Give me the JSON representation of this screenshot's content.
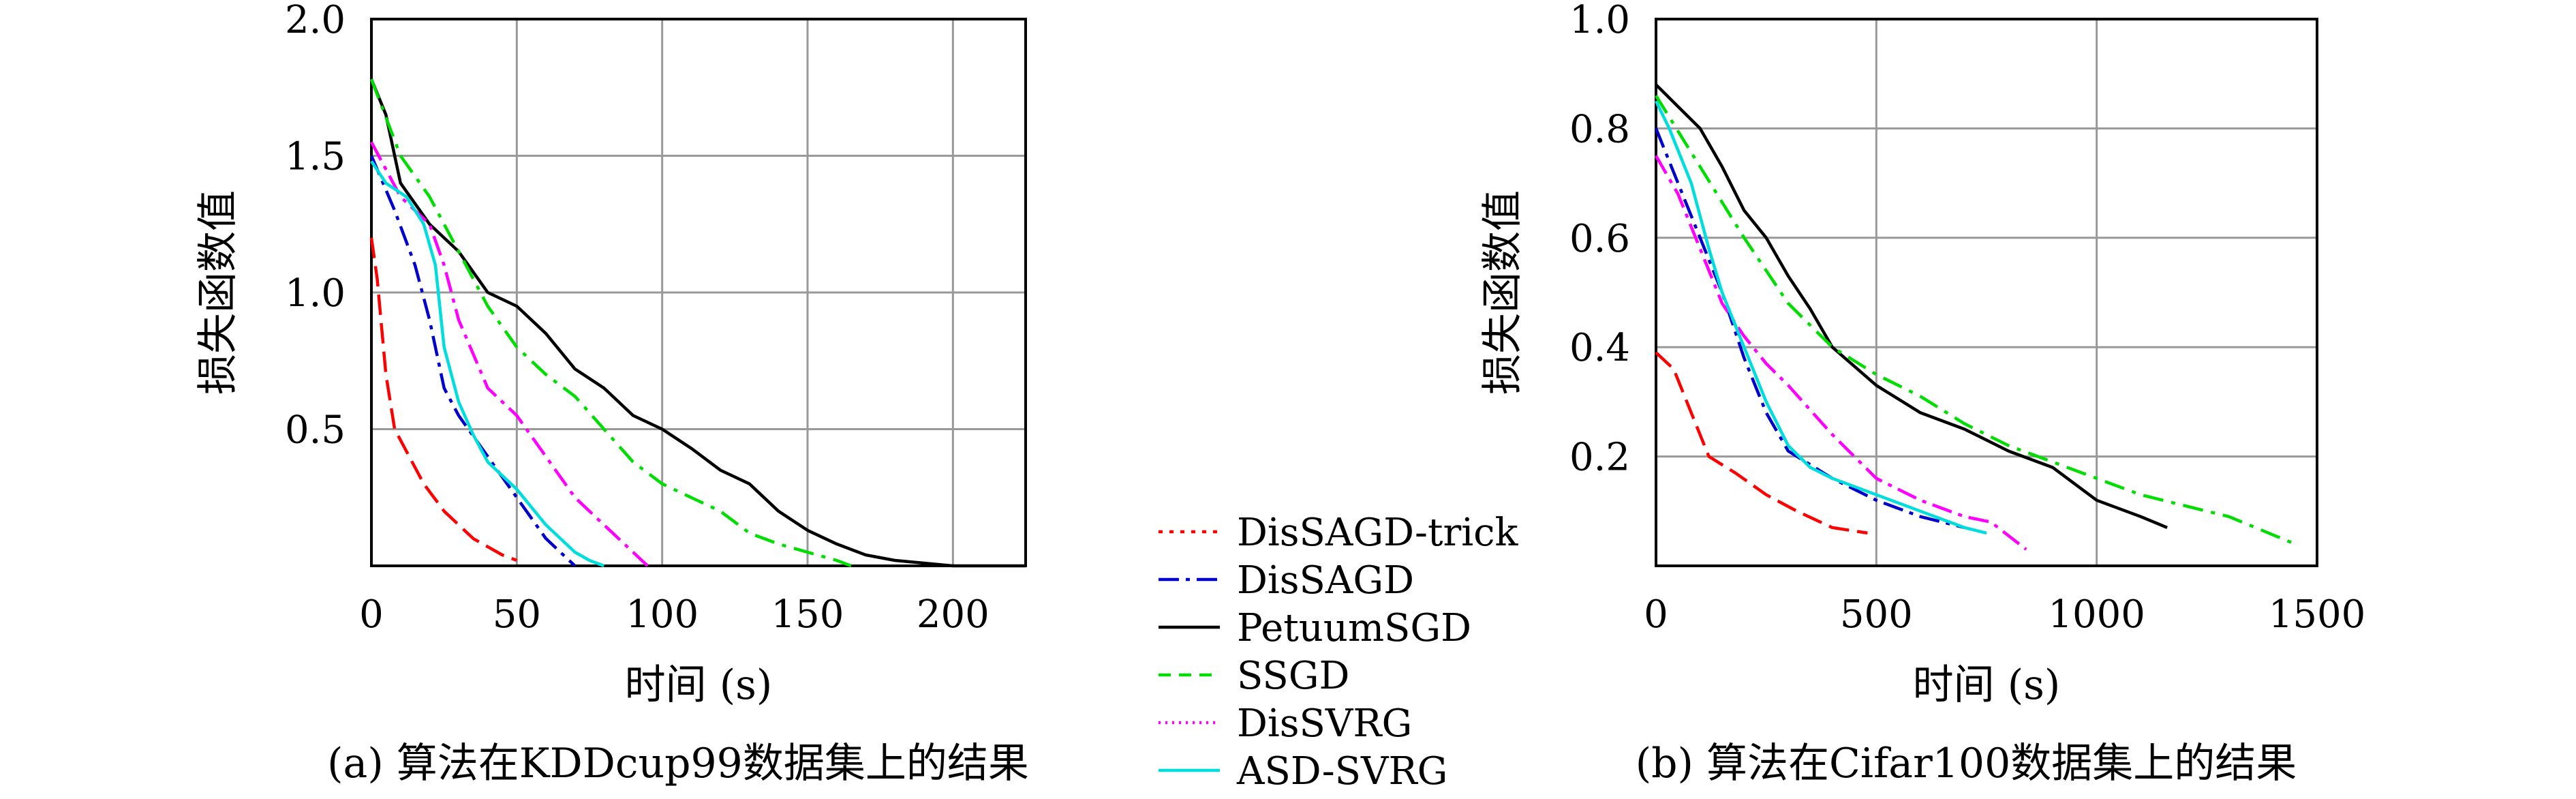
{
  "legend": [
    {
      "name": "DisSAGD-trick",
      "color": "#ff0000",
      "dash": "6,10"
    },
    {
      "name": "DisSAGD",
      "color": "#0000cc",
      "dash": "30,10,6,10"
    },
    {
      "name": "PetuumSGD",
      "color": "#000000",
      "dash": ""
    },
    {
      "name": "SSGD",
      "color": "#00dd00",
      "dash": "18,12"
    },
    {
      "name": "DisSVRG",
      "color": "#ff00ff",
      "dash": "3,7"
    },
    {
      "name": "ASD-SVRG",
      "color": "#00dddd",
      "dash": ""
    }
  ],
  "chart_data": [
    {
      "type": "line",
      "caption": "(a) 算法在KDDcup99数据集上的结果",
      "xlabel": "时间 (s)",
      "ylabel": "损失函数值",
      "xlim": [
        0,
        225
      ],
      "ylim": [
        0,
        2.0
      ],
      "xticks": [
        0,
        50,
        100,
        150,
        200
      ],
      "yticks": [
        0.5,
        1.0,
        1.5,
        2.0
      ],
      "ytick_labels": [
        "0.5",
        "1.0",
        "1.5",
        "2.0"
      ],
      "grid": true,
      "series": [
        {
          "name": "DisSAGD-trick",
          "color": "#ff0000",
          "dash": "30,12",
          "x": [
            0,
            2,
            5,
            8,
            12,
            18,
            25,
            35,
            45,
            50
          ],
          "y": [
            1.2,
            1.05,
            0.7,
            0.5,
            0.42,
            0.3,
            0.2,
            0.1,
            0.04,
            0.02
          ]
        },
        {
          "name": "DisSAGD",
          "color": "#0000cc",
          "dash": "30,10,6,10",
          "x": [
            0,
            8,
            15,
            20,
            25,
            30,
            40,
            50,
            60,
            65,
            70
          ],
          "y": [
            1.5,
            1.3,
            1.1,
            0.9,
            0.65,
            0.55,
            0.4,
            0.25,
            0.1,
            0.05,
            0.0
          ]
        },
        {
          "name": "PetuumSGD",
          "color": "#000000",
          "dash": "",
          "x": [
            0,
            5,
            10,
            20,
            30,
            40,
            50,
            60,
            70,
            80,
            90,
            100,
            110,
            120,
            130,
            140,
            150,
            160,
            170,
            180,
            190,
            200,
            225
          ],
          "y": [
            1.78,
            1.65,
            1.4,
            1.25,
            1.15,
            1.0,
            0.95,
            0.85,
            0.72,
            0.65,
            0.55,
            0.5,
            0.43,
            0.35,
            0.3,
            0.2,
            0.13,
            0.08,
            0.04,
            0.02,
            0.01,
            0.0,
            0.0
          ]
        },
        {
          "name": "SSGD",
          "color": "#00dd00",
          "dash": "30,12,6,12",
          "x": [
            0,
            10,
            20,
            30,
            40,
            50,
            60,
            70,
            80,
            90,
            100,
            110,
            120,
            130,
            140,
            150,
            160,
            165
          ],
          "y": [
            1.78,
            1.5,
            1.35,
            1.15,
            0.95,
            0.8,
            0.7,
            0.62,
            0.5,
            0.38,
            0.3,
            0.25,
            0.2,
            0.12,
            0.08,
            0.05,
            0.02,
            0.0
          ]
        },
        {
          "name": "DisSVRG",
          "color": "#ff00ff",
          "dash": "30,10,6,10",
          "x": [
            0,
            10,
            20,
            25,
            30,
            40,
            50,
            60,
            70,
            80,
            90,
            95
          ],
          "y": [
            1.55,
            1.35,
            1.25,
            1.1,
            0.9,
            0.65,
            0.55,
            0.4,
            0.25,
            0.15,
            0.05,
            0.0
          ]
        },
        {
          "name": "ASD-SVRG",
          "color": "#00dddd",
          "dash": "",
          "x": [
            0,
            5,
            12,
            18,
            22,
            25,
            30,
            35,
            40,
            50,
            60,
            70,
            75,
            80
          ],
          "y": [
            1.48,
            1.4,
            1.35,
            1.25,
            1.1,
            0.8,
            0.6,
            0.48,
            0.38,
            0.28,
            0.15,
            0.05,
            0.02,
            0.0
          ]
        }
      ]
    },
    {
      "type": "line",
      "caption": "(b) 算法在Cifar100数据集上的结果",
      "xlabel": "时间 (s)",
      "ylabel": "损失函数值",
      "xlim": [
        0,
        1500
      ],
      "ylim": [
        0,
        1.0
      ],
      "xticks": [
        0,
        500,
        1000,
        1500
      ],
      "yticks": [
        0.2,
        0.4,
        0.6,
        0.8,
        1.0
      ],
      "ytick_labels": [
        "0.2",
        "0.4",
        "0.6",
        "0.8",
        "1.0"
      ],
      "grid": true,
      "series": [
        {
          "name": "DisSAGD-trick",
          "color": "#ff0000",
          "dash": "30,12",
          "x": [
            0,
            40,
            80,
            120,
            180,
            250,
            320,
            400,
            480
          ],
          "y": [
            0.39,
            0.36,
            0.28,
            0.2,
            0.17,
            0.13,
            0.1,
            0.07,
            0.06
          ]
        },
        {
          "name": "DisSAGD",
          "color": "#0000cc",
          "dash": "30,10,6,10",
          "x": [
            0,
            50,
            100,
            150,
            200,
            250,
            300,
            400,
            500,
            600,
            700
          ],
          "y": [
            0.8,
            0.7,
            0.6,
            0.5,
            0.38,
            0.28,
            0.21,
            0.16,
            0.12,
            0.09,
            0.07
          ]
        },
        {
          "name": "PetuumSGD",
          "color": "#000000",
          "dash": "",
          "x": [
            0,
            50,
            100,
            150,
            200,
            250,
            300,
            350,
            400,
            500,
            600,
            700,
            800,
            900,
            1000,
            1100,
            1160
          ],
          "y": [
            0.88,
            0.84,
            0.8,
            0.73,
            0.65,
            0.6,
            0.53,
            0.47,
            0.4,
            0.33,
            0.28,
            0.25,
            0.21,
            0.18,
            0.12,
            0.09,
            0.07
          ]
        },
        {
          "name": "SSGD",
          "color": "#00dd00",
          "dash": "30,12,6,12",
          "x": [
            0,
            100,
            200,
            300,
            400,
            500,
            600,
            700,
            800,
            900,
            1000,
            1100,
            1200,
            1300,
            1450
          ],
          "y": [
            0.86,
            0.73,
            0.6,
            0.48,
            0.4,
            0.35,
            0.31,
            0.26,
            0.22,
            0.19,
            0.16,
            0.13,
            0.11,
            0.09,
            0.04
          ]
        },
        {
          "name": "DisSVRG",
          "color": "#ff00ff",
          "dash": "30,10,6,10",
          "x": [
            0,
            50,
            100,
            150,
            200,
            250,
            300,
            400,
            500,
            600,
            700,
            760,
            840
          ],
          "y": [
            0.75,
            0.68,
            0.58,
            0.48,
            0.42,
            0.37,
            0.33,
            0.24,
            0.16,
            0.12,
            0.09,
            0.08,
            0.03
          ]
        },
        {
          "name": "ASD-SVRG",
          "color": "#00dddd",
          "dash": "",
          "x": [
            0,
            30,
            80,
            120,
            150,
            200,
            250,
            300,
            350,
            400,
            500,
            600,
            700,
            750
          ],
          "y": [
            0.85,
            0.8,
            0.7,
            0.58,
            0.5,
            0.4,
            0.3,
            0.22,
            0.18,
            0.16,
            0.13,
            0.1,
            0.07,
            0.06
          ]
        }
      ]
    }
  ]
}
